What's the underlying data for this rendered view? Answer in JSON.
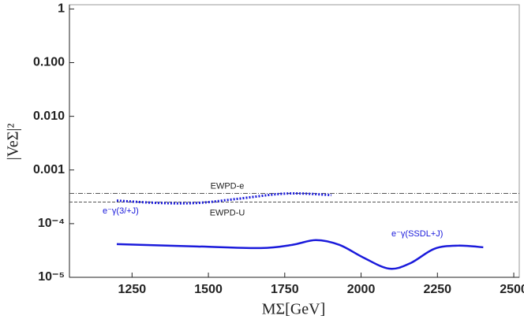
{
  "chart_data": {
    "type": "line",
    "x_label": "MΣ[GeV]",
    "y_label": "|VeΣ|²",
    "log_y": true,
    "xlim": [
      1045,
      2518
    ],
    "ylim": [
      1e-05,
      1.2
    ],
    "xticks": [
      1250,
      1500,
      1750,
      2000,
      2250,
      2500
    ],
    "yticks": [
      1,
      {
        "value": 0.1,
        "label": "0.100"
      },
      {
        "value": 0.01,
        "label": "0.010"
      },
      0.001,
      {
        "value": 0.0001,
        "label": "10⁻⁴"
      },
      {
        "value": 1e-05,
        "label": "10⁻⁵"
      }
    ],
    "reference_lines": [
      {
        "name": "EWPD-e",
        "value": 0.000366,
        "color": "#555555",
        "style": "dashdot"
      },
      {
        "name": "EWPD-U",
        "value": 0.000252,
        "color": "#555555",
        "style": "dashed"
      }
    ],
    "series": [
      {
        "name": "e⁻γ(3/+J)",
        "color": "#1a1adb",
        "style": "dotted",
        "x": [
          1200,
          1334,
          1464,
          1593,
          1722,
          1800,
          1903
        ],
        "values": [
          0.000269,
          0.000243,
          0.000243,
          0.000289,
          0.000353,
          0.000365,
          0.00034
        ]
      },
      {
        "name": "e⁻γ(SSDL+J)",
        "color": "#1a1adb",
        "style": "solid",
        "x": [
          1200,
          1464,
          1671,
          1774,
          1852,
          1929,
          2007,
          2092,
          2162,
          2240,
          2317,
          2400
        ],
        "values": [
          4.16e-05,
          3.76e-05,
          3.51e-05,
          4.02e-05,
          4.94e-05,
          4.02e-05,
          2.34e-05,
          1.45e-05,
          1.84e-05,
          3.4e-05,
          3.89e-05,
          3.63e-05
        ]
      }
    ]
  }
}
